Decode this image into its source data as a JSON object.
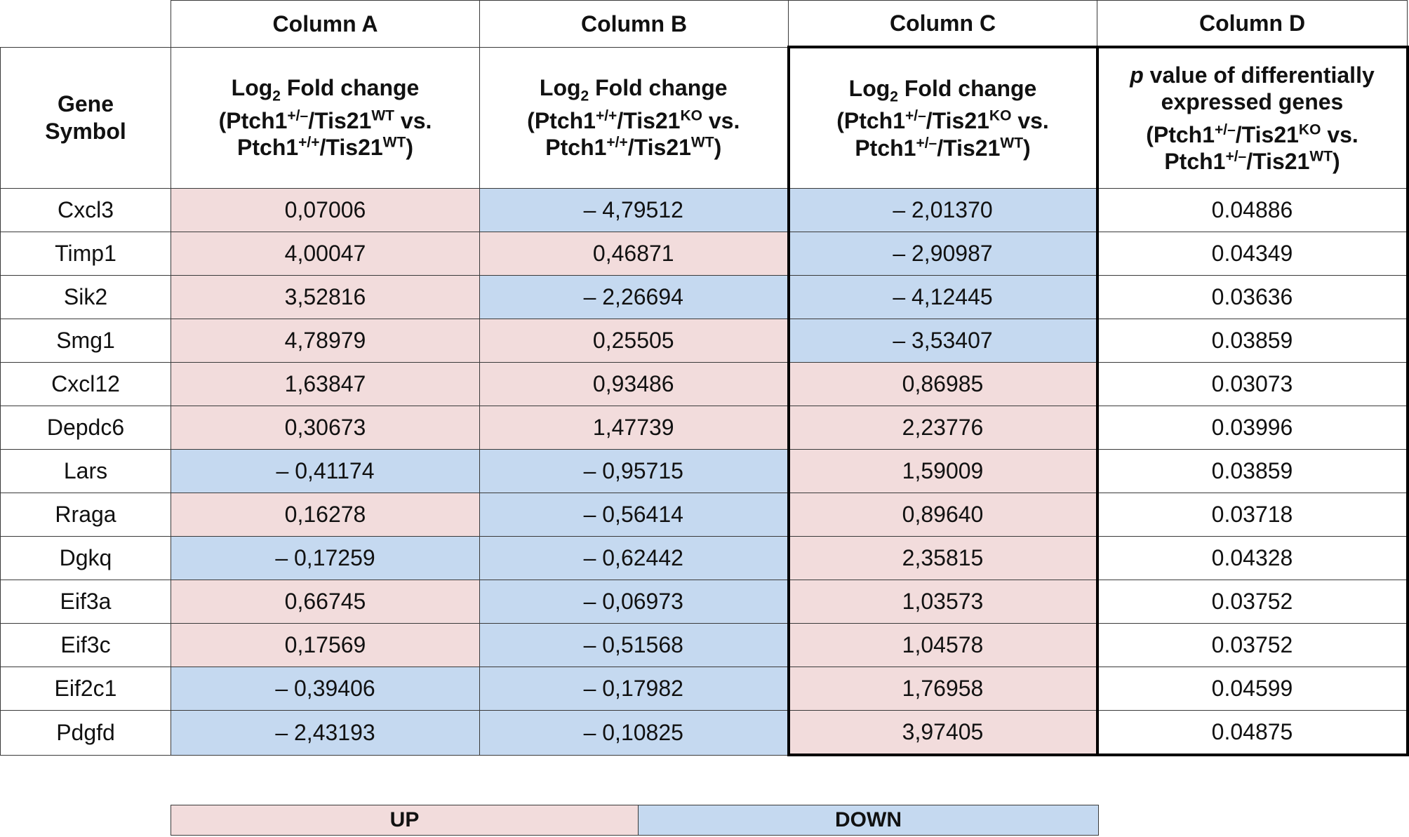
{
  "chart_data": {
    "type": "table",
    "column_titles": [
      "Column A",
      "Column B",
      "Column C",
      "Column D"
    ],
    "gene_symbol_header": [
      "Gene",
      "Symbol"
    ],
    "subheaders": {
      "A": {
        "line1_pre": "Log",
        "line1_sub": "2",
        "line1_post": " Fold change",
        "line2": "(Ptch1",
        "line2_sup1": "+/–",
        "line2_mid": "/Tis21",
        "line2_sup2": "WT",
        "line2_post": " vs.",
        "line3": "Ptch1",
        "line3_sup1": "+/+",
        "line3_mid": "/Tis21",
        "line3_sup2": "WT",
        "line3_post": ")"
      },
      "B": {
        "line1_pre": "Log",
        "line1_sub": "2",
        "line1_post": " Fold change",
        "line2": "(Ptch1",
        "line2_sup1": "+/+",
        "line2_mid": "/Tis21",
        "line2_sup2": "KO",
        "line2_post": " vs.",
        "line3": "Ptch1",
        "line3_sup1": "+/+",
        "line3_mid": "/Tis21",
        "line3_sup2": "WT",
        "line3_post": ")"
      },
      "C": {
        "line1_pre": "Log",
        "line1_sub": "2",
        "line1_post": " Fold change",
        "line2": "(Ptch1",
        "line2_sup1": "+/–",
        "line2_mid": "/Tis21",
        "line2_sup2": "KO",
        "line2_post": " vs.",
        "line3": "Ptch1",
        "line3_sup1": "+/–",
        "line3_mid": "/Tis21",
        "line3_sup2": "WT",
        "line3_post": ")"
      },
      "D": {
        "line1_italic": "p",
        "line1_post": " value of differentially",
        "line1b": "expressed genes",
        "line2": "(Ptch1",
        "line2_sup1": "+/–",
        "line2_mid": "/Tis21",
        "line2_sup2": "KO",
        "line2_post": " vs.",
        "line3": "Ptch1",
        "line3_sup1": "+/–",
        "line3_mid": "/Tis21",
        "line3_sup2": "WT",
        "line3_post": ")"
      }
    },
    "rows": [
      {
        "gene": "Cxcl3",
        "a": "0,07006",
        "b": "– 4,79512",
        "c": "– 2,01370",
        "d": "0.04886"
      },
      {
        "gene": "Timp1",
        "a": "4,00047",
        "b": "0,46871",
        "c": "– 2,90987",
        "d": "0.04349"
      },
      {
        "gene": "Sik2",
        "a": "3,52816",
        "b": "– 2,26694",
        "c": "– 4,12445",
        "d": "0.03636"
      },
      {
        "gene": "Smg1",
        "a": "4,78979",
        "b": "0,25505",
        "c": "– 3,53407",
        "d": "0.03859"
      },
      {
        "gene": "Cxcl12",
        "a": "1,63847",
        "b": "0,93486",
        "c": "0,86985",
        "d": "0.03073"
      },
      {
        "gene": "Depdc6",
        "a": "0,30673",
        "b": "1,47739",
        "c": "2,23776",
        "d": "0.03996"
      },
      {
        "gene": "Lars",
        "a": "– 0,41174",
        "b": "– 0,95715",
        "c": "1,59009",
        "d": "0.03859"
      },
      {
        "gene": "Rraga",
        "a": "0,16278",
        "b": "– 0,56414",
        "c": "0,89640",
        "d": "0.03718"
      },
      {
        "gene": "Dgkq",
        "a": "– 0,17259",
        "b": "– 0,62442",
        "c": "2,35815",
        "d": "0.04328"
      },
      {
        "gene": "Eif3a",
        "a": "0,66745",
        "b": "– 0,06973",
        "c": "1,03573",
        "d": "0.03752"
      },
      {
        "gene": "Eif3c",
        "a": "0,17569",
        "b": "– 0,51568",
        "c": "1,04578",
        "d": "0.03752"
      },
      {
        "gene": "Eif2c1",
        "a": "– 0,39406",
        "b": "– 0,17982",
        "c": "1,76958",
        "d": "0.04599"
      },
      {
        "gene": "Pdgfd",
        "a": "– 2,43193",
        "b": "– 0,10825",
        "c": "3,97405",
        "d": "0.04875"
      }
    ],
    "legend": {
      "up": "UP",
      "down": "DOWN"
    },
    "colors": {
      "up": "#f2dcdc",
      "down": "#c5d9f0"
    }
  }
}
